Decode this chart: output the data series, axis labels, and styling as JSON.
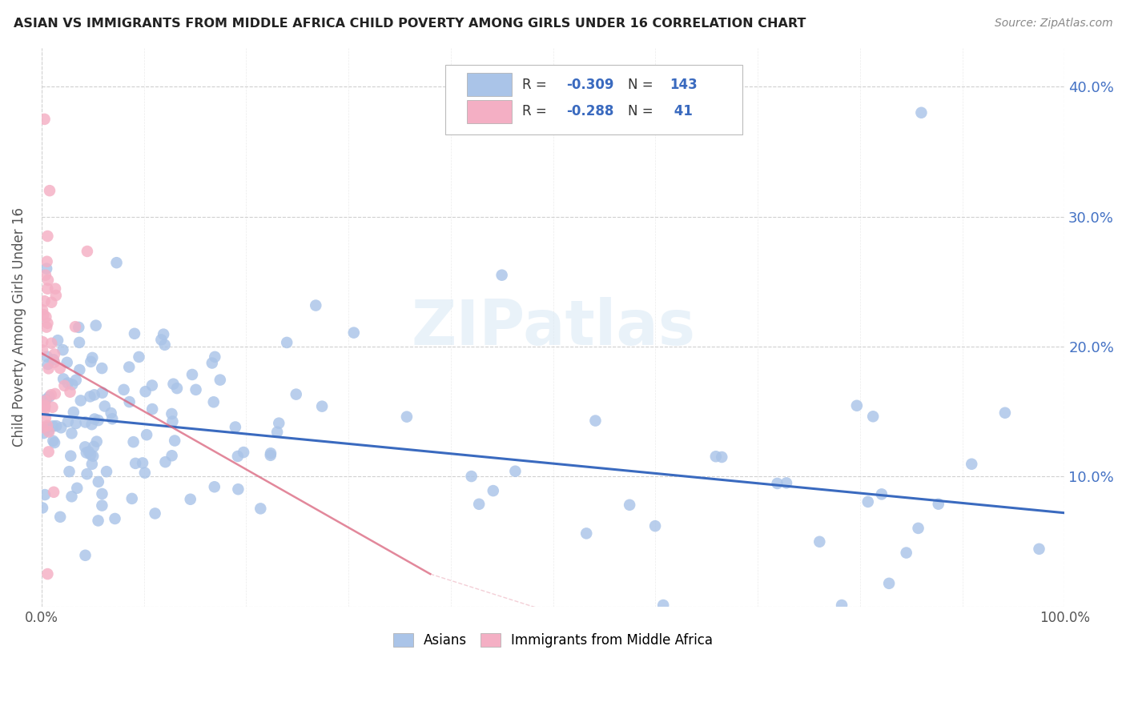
{
  "title": "ASIAN VS IMMIGRANTS FROM MIDDLE AFRICA CHILD POVERTY AMONG GIRLS UNDER 16 CORRELATION CHART",
  "source": "Source: ZipAtlas.com",
  "ylabel": "Child Poverty Among Girls Under 16",
  "watermark": "ZIPatlas",
  "asian_color": "#aac4e8",
  "immigrant_color": "#f4afc4",
  "asian_line_color": "#3a6abf",
  "immigrant_line_color": "#d9607a",
  "background_color": "#ffffff",
  "grid_color": "#d0d0d0",
  "right_tick_color": "#4472c4",
  "xlim": [
    0.0,
    1.0
  ],
  "ylim": [
    0.0,
    0.43
  ],
  "yticks": [
    0.0,
    0.1,
    0.2,
    0.3,
    0.4
  ],
  "xtick_labels": [
    "0.0%",
    "100.0%"
  ],
  "ytick_labels_right": [
    "",
    "10.0%",
    "20.0%",
    "30.0%",
    "40.0%"
  ],
  "legend_label_asian": "Asians",
  "legend_label_imm": "Immigrants from Middle Africa",
  "stats_R_asian": "-0.309",
  "stats_N_asian": "143",
  "stats_R_imm": "-0.288",
  "stats_N_imm": " 41",
  "asian_line_x": [
    0.0,
    1.0
  ],
  "asian_line_y": [
    0.148,
    0.072
  ],
  "imm_line_x": [
    0.0,
    0.38
  ],
  "imm_line_y": [
    0.195,
    0.025
  ]
}
